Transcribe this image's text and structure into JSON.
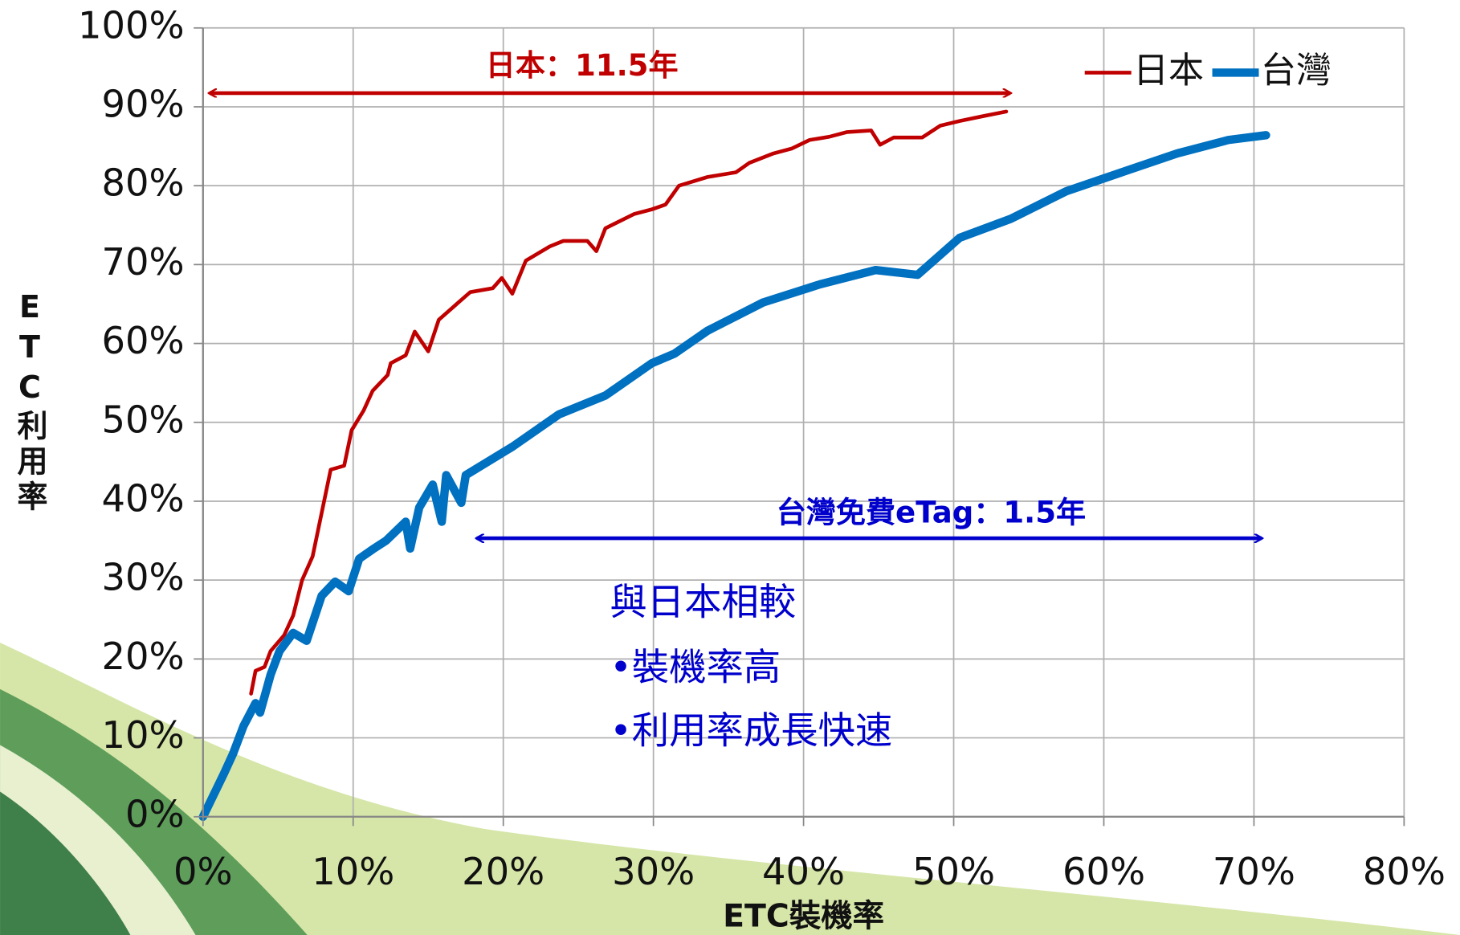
{
  "chart_data": {
    "type": "line",
    "xlabel": "ETC裝機率",
    "ylabel": "ETC利用率",
    "xlim": [
      0,
      80
    ],
    "xticks": [
      {
        "value": 0,
        "label": "0%"
      },
      {
        "value": 10,
        "label": "10%"
      },
      {
        "value": 20,
        "label": "20%"
      },
      {
        "value": 30,
        "label": "30%"
      },
      {
        "value": 40,
        "label": "40%"
      },
      {
        "value": 50,
        "label": "50%"
      },
      {
        "value": 60,
        "label": "60%"
      },
      {
        "value": 70,
        "label": "70%"
      },
      {
        "value": 80,
        "label": "80%"
      }
    ],
    "ylim": [
      0,
      100
    ],
    "yticks": [
      {
        "value": 0,
        "label": "0%"
      },
      {
        "value": 10,
        "label": "10%"
      },
      {
        "value": 20,
        "label": "20%"
      },
      {
        "value": 30,
        "label": "30%"
      },
      {
        "value": 40,
        "label": "40%"
      },
      {
        "value": 50,
        "label": "50%"
      },
      {
        "value": 60,
        "label": "60%"
      },
      {
        "value": 70,
        "label": "70%"
      },
      {
        "value": 80,
        "label": "80%"
      },
      {
        "value": 90,
        "label": "90%"
      },
      {
        "value": 100,
        "label": "100%"
      }
    ],
    "grid": true,
    "legend": "top-right",
    "series": [
      {
        "name": "日本",
        "color": "#c00000",
        "width": 4,
        "x": [
          3.2,
          3.5,
          4.1,
          4.5,
          5.4,
          6.0,
          6.6,
          7.3,
          7.9,
          8.5,
          9.4,
          9.9,
          10.7,
          11.3,
          12.3,
          12.5,
          13.5,
          14.1,
          15.0,
          15.7,
          16.9,
          17.8,
          19.3,
          19.9,
          20.6,
          21.5,
          23.1,
          24.0,
          25.6,
          26.2,
          26.8,
          28.7,
          29.9,
          30.8,
          31.7,
          33.6,
          35.5,
          36.4,
          38.0,
          39.2,
          40.4,
          41.7,
          42.9,
          44.5,
          45.1,
          46.0,
          47.9,
          49.1,
          50.4,
          51.9,
          53.5
        ],
        "values": [
          15.6,
          18.5,
          19,
          21,
          23,
          25.5,
          30,
          33,
          38.5,
          44,
          44.5,
          49,
          51.5,
          54,
          56,
          57.5,
          58.5,
          61.5,
          59,
          63,
          65,
          66.5,
          67,
          68.3,
          66.3,
          70.5,
          72.3,
          73,
          73,
          71.7,
          74.6,
          76.4,
          77,
          77.6,
          80,
          81.1,
          81.7,
          82.9,
          84.1,
          84.7,
          85.8,
          86.2,
          86.8,
          87,
          85.2,
          86.1,
          86.1,
          87.6,
          88.2,
          88.8,
          89.4
        ]
      },
      {
        "name": "台灣",
        "color": "#0070c0",
        "width": 9,
        "x": [
          0,
          1.4,
          2.0,
          2.7,
          3.5,
          3.8,
          4.5,
          5.1,
          6.0,
          6.9,
          7.9,
          8.8,
          9.7,
          10.4,
          11.3,
          12.2,
          13.5,
          13.8,
          14.4,
          15.3,
          15.9,
          16.2,
          17.2,
          17.5,
          20.6,
          23.7,
          26.8,
          29.9,
          31.4,
          33.6,
          37.3,
          41.1,
          44.8,
          47.6,
          50.4,
          53.8,
          57.5,
          61.2,
          64.9,
          68.3,
          70.8
        ],
        "values": [
          0,
          5.5,
          8,
          11.5,
          14.4,
          13.2,
          18,
          21,
          23.3,
          22.3,
          28,
          29.8,
          28.6,
          32.7,
          33.9,
          35,
          37.4,
          34,
          39.2,
          42.1,
          37.4,
          43.3,
          39.8,
          43.3,
          46.9,
          51,
          53.4,
          57.5,
          58.7,
          61.6,
          65.2,
          67.5,
          69.3,
          68.7,
          73.4,
          75.8,
          79.3,
          81.7,
          84.1,
          85.8,
          86.4
        ]
      }
    ],
    "annotations": [
      {
        "text": "日本：11.5年",
        "color": "#c00000"
      },
      {
        "text": "台灣免費eTag：1.5年",
        "color": "#0000cc"
      },
      {
        "text": "與日本相較",
        "color": "#0000cc"
      },
      {
        "text": "•裝機率高",
        "color": "#0000cc"
      },
      {
        "text": "•利用率成長快速",
        "color": "#0000cc"
      }
    ]
  }
}
